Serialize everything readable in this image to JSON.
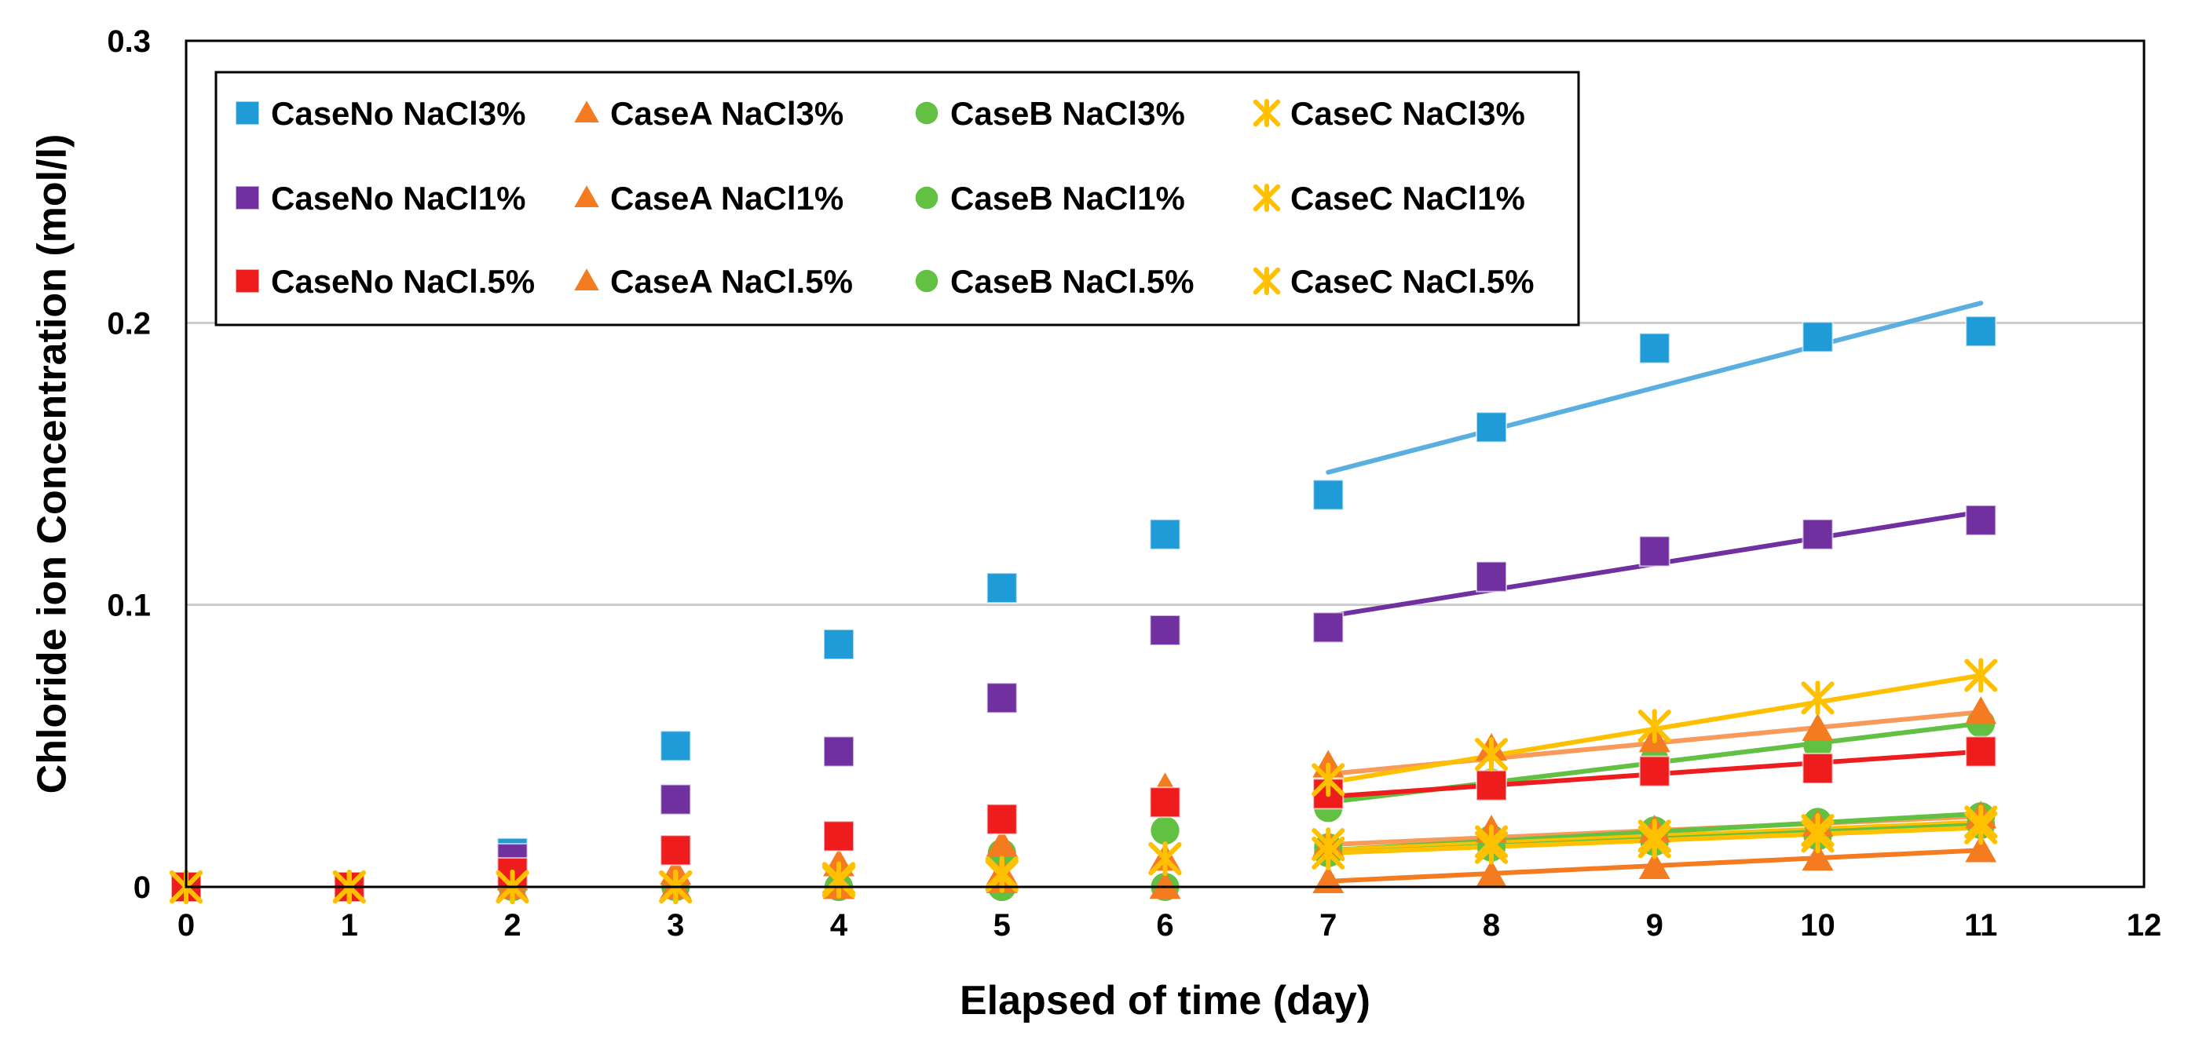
{
  "chart_data": {
    "type": "scatter",
    "title": "",
    "xlabel": "Elapsed of time (day)",
    "ylabel": "Chloride ion Concentration (mol/l)",
    "xlim": [
      0,
      12
    ],
    "ylim": [
      0,
      0.3
    ],
    "xticks": [
      0,
      1,
      2,
      3,
      4,
      5,
      6,
      7,
      8,
      9,
      10,
      11,
      12
    ],
    "yticks": [
      0,
      0.1,
      0.2,
      0.3
    ],
    "xtick_labels": [
      "0",
      "1",
      "2",
      "3",
      "4",
      "5",
      "6",
      "7",
      "8",
      "9",
      "10",
      "11",
      "12"
    ],
    "ytick_labels": [
      "0",
      "0.1",
      "0.2",
      "0.3"
    ],
    "grid": "horizontal",
    "legend_position": "top-left",
    "series": [
      {
        "name": "CaseNo NaCl3%",
        "marker": "square",
        "color": "#1f9bd7",
        "trend_color": "#5aaee0",
        "x": [
          0,
          1,
          2,
          3,
          4,
          5,
          6,
          7,
          8,
          9,
          10,
          11
        ],
        "y": [
          0,
          0,
          0.012,
          0.05,
          0.086,
          0.106,
          0.125,
          0.139,
          0.163,
          0.191,
          0.195,
          0.197
        ],
        "trend": {
          "x": [
            7,
            11
          ],
          "y": [
            0.147,
            0.207
          ]
        }
      },
      {
        "name": "CaseA NaCl3%",
        "marker": "triangle",
        "color": "#f47b20",
        "trend_color": "#f79a5a",
        "x": [
          0,
          1,
          2,
          3,
          4,
          5,
          6,
          7,
          8,
          9,
          10,
          11
        ],
        "y": [
          0,
          0,
          0.003,
          0.005,
          0.008,
          0.015,
          0.035,
          0.043,
          0.049,
          0.052,
          0.056,
          0.062
        ],
        "trend": {
          "x": [
            7,
            11
          ],
          "y": [
            0.04,
            0.062
          ]
        }
      },
      {
        "name": "CaseB NaCl3%",
        "marker": "circle",
        "color": "#62c043",
        "trend_color": "#62c043",
        "x": [
          0,
          1,
          2,
          3,
          4,
          5,
          6,
          7,
          8,
          9,
          10,
          11
        ],
        "y": [
          0,
          0,
          0,
          0,
          0,
          0.012,
          0.02,
          0.028,
          0.037,
          0.045,
          0.05,
          0.058
        ],
        "trend": {
          "x": [
            7,
            11
          ],
          "y": [
            0.03,
            0.058
          ]
        }
      },
      {
        "name": "CaseC NaCl3%",
        "marker": "asterisk",
        "color": "#ffc000",
        "trend_color": "#ffc000",
        "x": [
          0,
          1,
          2,
          3,
          4,
          5,
          6,
          7,
          8,
          9,
          10,
          11
        ],
        "y": [
          0,
          0,
          0,
          0,
          0.003,
          0.005,
          0.01,
          0.038,
          0.047,
          0.057,
          0.067,
          0.075
        ],
        "trend": {
          "x": [
            7,
            11
          ],
          "y": [
            0.037,
            0.075
          ]
        }
      },
      {
        "name": "CaseNo NaCl1%",
        "marker": "square",
        "color": "#7030a0",
        "trend_color": "#7030a0",
        "x": [
          0,
          1,
          2,
          3,
          4,
          5,
          6,
          7,
          8,
          9,
          10,
          11
        ],
        "y": [
          0,
          0,
          0.01,
          0.031,
          0.048,
          0.067,
          0.091,
          0.092,
          0.11,
          0.119,
          0.125,
          0.13
        ],
        "trend": {
          "x": [
            7,
            11
          ],
          "y": [
            0.096,
            0.133
          ]
        }
      },
      {
        "name": "CaseA NaCl1%",
        "marker": "triangle",
        "color": "#f47b20",
        "trend_color": "#f79a5a",
        "x": [
          0,
          1,
          2,
          3,
          4,
          5,
          6,
          7,
          8,
          9,
          10,
          11
        ],
        "y": [
          0,
          0,
          0,
          0,
          0,
          0.005,
          0.01,
          0.015,
          0.02,
          0.02,
          0.022,
          0.025
        ],
        "trend": {
          "x": [
            7,
            11
          ],
          "y": [
            0.015,
            0.025
          ]
        }
      },
      {
        "name": "CaseB NaCl1%",
        "marker": "circle",
        "color": "#62c043",
        "trend_color": "#62c043",
        "x": [
          0,
          1,
          2,
          3,
          4,
          5,
          6,
          7,
          8,
          9,
          10,
          11
        ],
        "y": [
          0,
          0,
          0,
          0,
          0,
          0,
          0.02,
          0.014,
          0.017,
          0.02,
          0.023,
          0.025
        ],
        "trend": {
          "x": [
            7,
            11
          ],
          "y": [
            0.013,
            0.026
          ]
        }
      },
      {
        "name": "CaseC NaCl1%",
        "marker": "asterisk",
        "color": "#ffc000",
        "trend_color": "#ffc000",
        "x": [
          0,
          1,
          2,
          3,
          4,
          5,
          6,
          7,
          8,
          9,
          10,
          11
        ],
        "y": [
          0,
          0,
          0,
          0,
          0.002,
          0.004,
          0.01,
          0.015,
          0.016,
          0.018,
          0.02,
          0.023
        ],
        "trend": {
          "x": [
            7,
            11
          ],
          "y": [
            0.013,
            0.023
          ]
        }
      },
      {
        "name": "CaseNo NaCl.5%",
        "marker": "square",
        "color": "#ee1c1c",
        "trend_color": "#ee1c1c",
        "x": [
          0,
          1,
          2,
          3,
          4,
          5,
          6,
          7,
          8,
          9,
          10,
          11
        ],
        "y": [
          0,
          0,
          0.005,
          0.013,
          0.018,
          0.024,
          0.03,
          0.033,
          0.036,
          0.041,
          0.042,
          0.048
        ],
        "trend": {
          "x": [
            7,
            11
          ],
          "y": [
            0.032,
            0.048
          ]
        }
      },
      {
        "name": "CaseA NaCl.5%",
        "marker": "triangle",
        "color": "#f47b20",
        "trend_color": "#f47b20",
        "x": [
          0,
          1,
          2,
          3,
          4,
          5,
          6,
          7,
          8,
          9,
          10,
          11
        ],
        "y": [
          0,
          0,
          0,
          0,
          0,
          0.002,
          0,
          0.002,
          0.004,
          0.007,
          0.01,
          0.013
        ],
        "trend": {
          "x": [
            7,
            11
          ],
          "y": [
            0.002,
            0.013
          ]
        }
      },
      {
        "name": "CaseB NaCl.5%",
        "marker": "circle",
        "color": "#62c043",
        "trend_color": "#62c043",
        "x": [
          0,
          1,
          2,
          3,
          4,
          5,
          6,
          7,
          8,
          9,
          10,
          11
        ],
        "y": [
          0,
          0,
          0,
          0,
          0,
          0,
          0,
          0.012,
          0.014,
          0.016,
          0.018,
          0.022
        ],
        "trend": {
          "x": [
            7,
            11
          ],
          "y": [
            0.012,
            0.022
          ]
        }
      },
      {
        "name": "CaseC NaCl.5%",
        "marker": "asterisk",
        "color": "#ffc000",
        "trend_color": "#ffc000",
        "x": [
          0,
          1,
          2,
          3,
          4,
          5,
          6,
          7,
          8,
          9,
          10,
          11
        ],
        "y": [
          0,
          0,
          0,
          0,
          0.002,
          0.004,
          0.01,
          0.012,
          0.014,
          0.016,
          0.018,
          0.021
        ],
        "trend": {
          "x": [
            7,
            11
          ],
          "y": [
            0.012,
            0.021
          ]
        }
      }
    ]
  }
}
